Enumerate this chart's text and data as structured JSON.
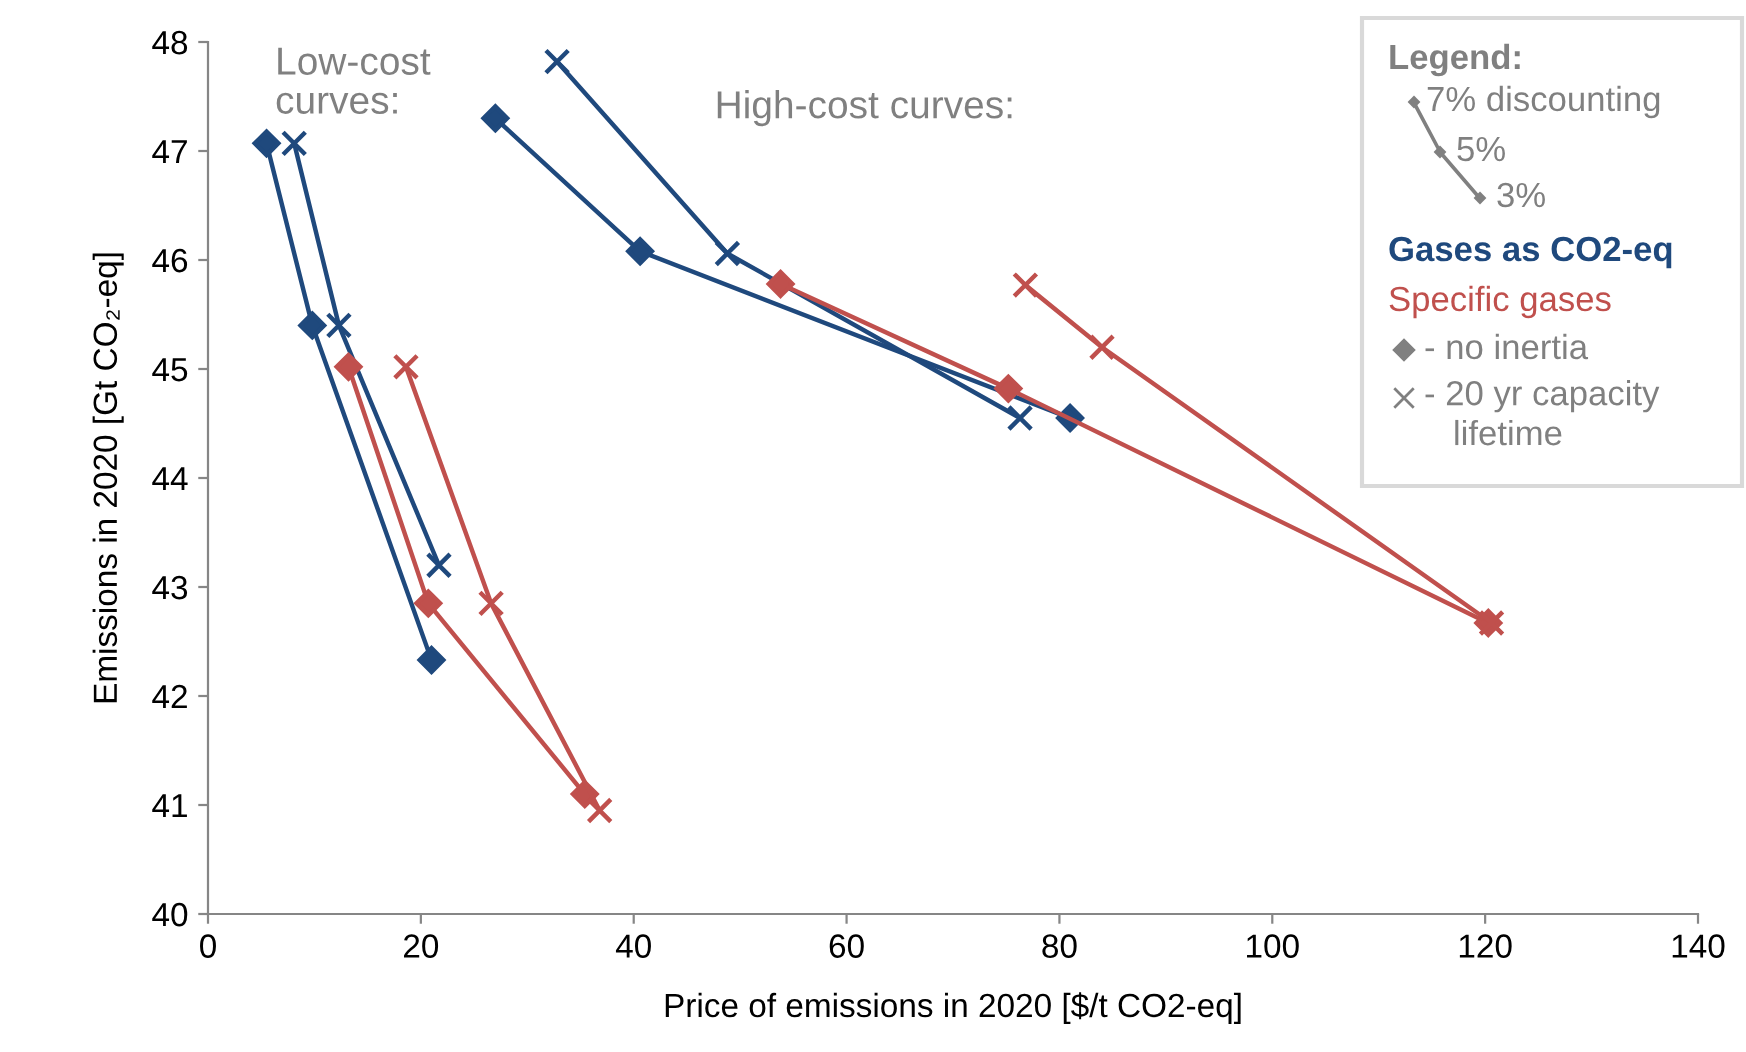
{
  "chart_data": {
    "type": "line",
    "xlabel": "Price of emissions in 2020 [$/t CO2-eq]",
    "ylabel": "Emissions in 2020 [Gt CO₂-eq]",
    "xlim": [
      0,
      140
    ],
    "xticks": [
      0,
      20,
      40,
      60,
      80,
      100,
      120,
      140
    ],
    "ylim": [
      40,
      48
    ],
    "yticks": [
      40,
      41,
      42,
      43,
      44,
      45,
      46,
      47,
      48
    ],
    "grid": false,
    "series": [
      {
        "color": "#1f497d",
        "marker": "diamond",
        "x": [
          5.5,
          9.8,
          21.0
        ],
        "values": [
          47.07,
          45.4,
          42.33
        ]
      },
      {
        "color": "#1f497d",
        "marker": "cross",
        "x": [
          8.1,
          12.3,
          21.7
        ],
        "values": [
          47.07,
          45.4,
          43.2
        ]
      },
      {
        "color": "#c0504d",
        "marker": "diamond",
        "x": [
          13.2,
          20.7,
          35.4
        ],
        "values": [
          45.02,
          42.85,
          41.1
        ]
      },
      {
        "color": "#c0504d",
        "marker": "cross",
        "x": [
          18.6,
          26.6,
          36.8
        ],
        "values": [
          45.02,
          42.85,
          40.95
        ]
      },
      {
        "color": "#1f497d",
        "marker": "diamond",
        "x": [
          27.0,
          40.6,
          81.0
        ],
        "values": [
          47.3,
          46.08,
          44.55
        ]
      },
      {
        "color": "#1f497d",
        "marker": "cross",
        "x": [
          32.8,
          48.8,
          76.3
        ],
        "values": [
          47.82,
          46.06,
          44.55
        ]
      },
      {
        "color": "#c0504d",
        "marker": "diamond",
        "x": [
          53.8,
          75.2,
          120.3
        ],
        "values": [
          45.78,
          44.82,
          42.67
        ]
      },
      {
        "color": "#c0504d",
        "marker": "cross",
        "x": [
          76.8,
          84.0,
          120.6
        ],
        "values": [
          45.77,
          45.2,
          42.67
        ]
      }
    ],
    "annotations": [
      "Low-cost\ncurves:",
      "High-cost curves:",
      "Legend:",
      "7% discounting",
      "5%",
      "3%",
      "Gases as CO2-eq",
      "Specific gases",
      "- no inertia",
      "- 20 yr capacity\n   lifetime"
    ]
  }
}
